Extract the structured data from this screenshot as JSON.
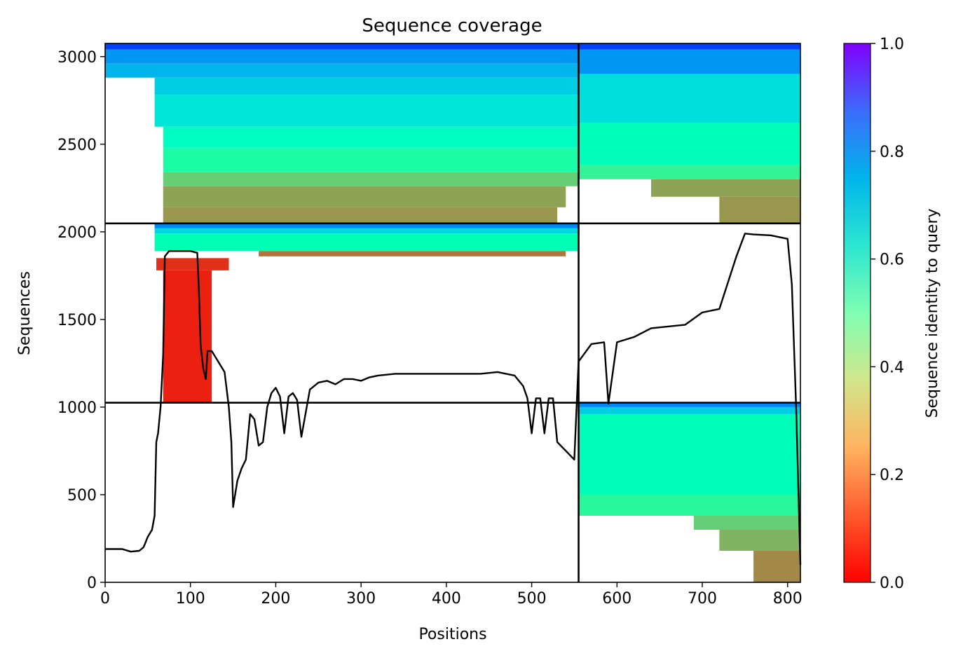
{
  "chart_data": {
    "type": "heatmap",
    "title": "Sequence coverage",
    "xlabel": "Positions",
    "ylabel": "Sequences",
    "xlim": [
      0,
      815
    ],
    "ylim": [
      0,
      3075
    ],
    "x_ticks": [
      0,
      100,
      200,
      300,
      400,
      500,
      600,
      700,
      800
    ],
    "y_ticks": [
      0,
      500,
      1000,
      1500,
      2000,
      2500,
      3000
    ],
    "colorbar": {
      "label": "Sequence identity to query",
      "range": [
        0.0,
        1.0
      ],
      "ticks": [
        "0.0",
        "0.2",
        "0.4",
        "0.6",
        "0.8",
        "1.0"
      ],
      "colormap": "rainbow_r"
    },
    "region_boundaries": {
      "x": 555,
      "y": [
        1025,
        2048
      ]
    },
    "coverage_line": {
      "name": "",
      "color": "#000000",
      "x": [
        0,
        20,
        30,
        40,
        45,
        50,
        55,
        58,
        60,
        62,
        65,
        68,
        70,
        75,
        100,
        108,
        110,
        112,
        115,
        118,
        120,
        125,
        130,
        140,
        145,
        148,
        150,
        155,
        160,
        165,
        170,
        175,
        180,
        185,
        190,
        195,
        200,
        205,
        210,
        215,
        220,
        225,
        230,
        240,
        250,
        260,
        270,
        280,
        290,
        300,
        310,
        320,
        340,
        355,
        360,
        380,
        400,
        420,
        440,
        460,
        480,
        490,
        495,
        500,
        505,
        510,
        515,
        520,
        525,
        530,
        540,
        550,
        555,
        570,
        585,
        590,
        600,
        620,
        640,
        660,
        680,
        700,
        720,
        740,
        750,
        760,
        780,
        800,
        805,
        810,
        815
      ],
      "y": [
        190,
        190,
        175,
        180,
        200,
        260,
        300,
        380,
        800,
        850,
        1000,
        1300,
        1860,
        1890,
        1890,
        1880,
        1650,
        1350,
        1220,
        1160,
        1320,
        1320,
        1280,
        1200,
        1000,
        800,
        430,
        580,
        650,
        700,
        960,
        930,
        780,
        800,
        1000,
        1080,
        1110,
        1060,
        850,
        1060,
        1080,
        1040,
        830,
        1100,
        1140,
        1150,
        1130,
        1160,
        1160,
        1150,
        1170,
        1180,
        1190,
        1190,
        1190,
        1190,
        1190,
        1190,
        1190,
        1200,
        1180,
        1120,
        1050,
        850,
        1050,
        1050,
        850,
        1050,
        1050,
        800,
        750,
        700,
        1260,
        1360,
        1370,
        1020,
        1370,
        1400,
        1450,
        1460,
        1470,
        1540,
        1560,
        1860,
        1990,
        1985,
        1980,
        1960,
        1700,
        1000,
        100
      ]
    },
    "identity_blocks": [
      {
        "x0": 0,
        "x1": 555,
        "y0": 3040,
        "y1": 3075,
        "identity": 0.92
      },
      {
        "x0": 0,
        "x1": 555,
        "y0": 2960,
        "y1": 3040,
        "identity": 0.8
      },
      {
        "x0": 0,
        "x1": 555,
        "y0": 2880,
        "y1": 2960,
        "identity": 0.75
      },
      {
        "x0": 58,
        "x1": 555,
        "y0": 2780,
        "y1": 2880,
        "identity": 0.7
      },
      {
        "x0": 58,
        "x1": 555,
        "y0": 2600,
        "y1": 2780,
        "identity": 0.64
      },
      {
        "x0": 68,
        "x1": 555,
        "y0": 2480,
        "y1": 2600,
        "identity": 0.55
      },
      {
        "x0": 68,
        "x1": 555,
        "y0": 2340,
        "y1": 2480,
        "identity": 0.45
      },
      {
        "x0": 68,
        "x1": 555,
        "y0": 2260,
        "y1": 2340,
        "identity": 0.3
      },
      {
        "x0": 68,
        "x1": 540,
        "y0": 2140,
        "y1": 2260,
        "identity": 0.22
      },
      {
        "x0": 68,
        "x1": 530,
        "y0": 2048,
        "y1": 2140,
        "identity": 0.2
      },
      {
        "x0": 555,
        "x1": 815,
        "y0": 3040,
        "y1": 3075,
        "identity": 0.92
      },
      {
        "x0": 555,
        "x1": 815,
        "y0": 2900,
        "y1": 3040,
        "identity": 0.8
      },
      {
        "x0": 555,
        "x1": 815,
        "y0": 2620,
        "y1": 2900,
        "identity": 0.66
      },
      {
        "x0": 555,
        "x1": 815,
        "y0": 2380,
        "y1": 2620,
        "identity": 0.52
      },
      {
        "x0": 555,
        "x1": 815,
        "y0": 2300,
        "y1": 2380,
        "identity": 0.4
      },
      {
        "x0": 640,
        "x1": 815,
        "y0": 2200,
        "y1": 2300,
        "identity": 0.22
      },
      {
        "x0": 720,
        "x1": 815,
        "y0": 2048,
        "y1": 2200,
        "identity": 0.2
      },
      {
        "x0": 58,
        "x1": 555,
        "y0": 2020,
        "y1": 2048,
        "identity": 0.82
      },
      {
        "x0": 58,
        "x1": 555,
        "y0": 1990,
        "y1": 2020,
        "identity": 0.68
      },
      {
        "x0": 58,
        "x1": 555,
        "y0": 1890,
        "y1": 1990,
        "identity": 0.5
      },
      {
        "x0": 180,
        "x1": 540,
        "y0": 1860,
        "y1": 1890,
        "identity": 0.15
      },
      {
        "x0": 60,
        "x1": 145,
        "y0": 1780,
        "y1": 1850,
        "identity": 0.06
      },
      {
        "x0": 68,
        "x1": 125,
        "y0": 1025,
        "y1": 1780,
        "identity": 0.04
      },
      {
        "x0": 555,
        "x1": 815,
        "y0": 1000,
        "y1": 1025,
        "identity": 0.82
      },
      {
        "x0": 555,
        "x1": 815,
        "y0": 960,
        "y1": 1000,
        "identity": 0.7
      },
      {
        "x0": 555,
        "x1": 815,
        "y0": 500,
        "y1": 960,
        "identity": 0.52
      },
      {
        "x0": 555,
        "x1": 815,
        "y0": 380,
        "y1": 500,
        "identity": 0.42
      },
      {
        "x0": 690,
        "x1": 815,
        "y0": 300,
        "y1": 380,
        "identity": 0.3
      },
      {
        "x0": 720,
        "x1": 815,
        "y0": 180,
        "y1": 300,
        "identity": 0.25
      },
      {
        "x0": 760,
        "x1": 815,
        "y0": 0,
        "y1": 180,
        "identity": 0.18
      }
    ],
    "grid": false,
    "legend": "none"
  }
}
